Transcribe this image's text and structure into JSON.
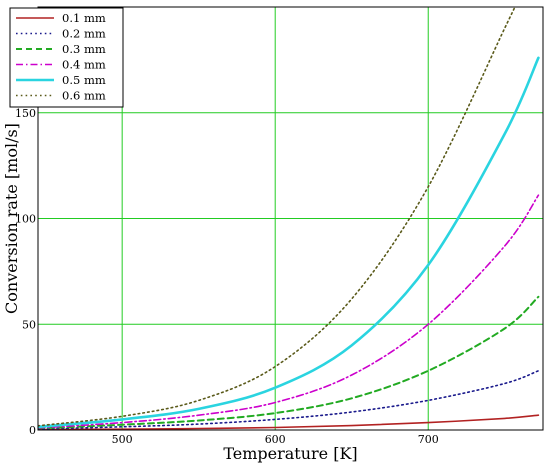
{
  "chart_data": {
    "type": "line",
    "xlabel": "Temperature [K]",
    "ylabel": "Conversion rate [mol/s]",
    "xlim": [
      445,
      775
    ],
    "ylim": [
      0,
      200
    ],
    "xticks": [
      500,
      600,
      700
    ],
    "yticks": [
      0,
      50,
      100,
      150
    ],
    "grid": true,
    "grid_color": "#22cc22",
    "legend_placement": "top-left",
    "series": [
      {
        "name": "0.1 mm",
        "color": "#b22222",
        "style": "solid",
        "x": [
          445,
          500,
          550,
          600,
          650,
          700,
          750,
          772
        ],
        "y": [
          0.2,
          0.4,
          0.7,
          1.2,
          2.1,
          3.5,
          5.5,
          7
        ]
      },
      {
        "name": "0.2 mm",
        "color": "#1a1a8c",
        "style": "dotted",
        "x": [
          445,
          500,
          550,
          600,
          650,
          700,
          750,
          772
        ],
        "y": [
          0.5,
          1.5,
          2.8,
          5,
          8.5,
          14,
          22,
          28
        ]
      },
      {
        "name": "0.3 mm",
        "color": "#22aa22",
        "style": "dashed",
        "x": [
          445,
          500,
          550,
          600,
          650,
          700,
          750,
          772
        ],
        "y": [
          0.8,
          2.5,
          4.5,
          8,
          15,
          28,
          48,
          63
        ]
      },
      {
        "name": "0.4 mm",
        "color": "#cc00cc",
        "style": "dashdot",
        "x": [
          445,
          500,
          550,
          600,
          650,
          700,
          750,
          772
        ],
        "y": [
          1,
          3.5,
          7,
          13,
          26,
          50,
          87,
          111
        ]
      },
      {
        "name": "0.5 mm",
        "color": "#2ad4e0",
        "style": "solid-thick",
        "x": [
          445,
          500,
          550,
          600,
          650,
          700,
          750,
          772
        ],
        "y": [
          1.5,
          5,
          10,
          20,
          40,
          78,
          140,
          176
        ]
      },
      {
        "name": "0.6 mm",
        "color": "#5a5a1a",
        "style": "dotted",
        "x": [
          445,
          500,
          550,
          600,
          650,
          700,
          750,
          756
        ],
        "y": [
          2,
          6.5,
          14,
          30,
          62,
          115,
          190,
          199
        ]
      }
    ]
  }
}
